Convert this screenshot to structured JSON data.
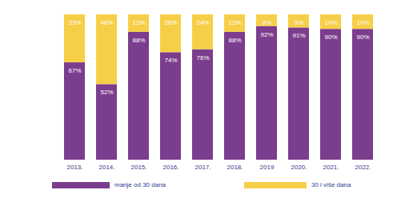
{
  "chart_data": {
    "type": "bar",
    "stacked": true,
    "categories": [
      "2013.",
      "2014.",
      "2015.",
      "2016.",
      "2017.",
      "2018.",
      "2019",
      "2020.",
      "2021.",
      "2022."
    ],
    "series": [
      {
        "name": "manje od 30 dana",
        "color": "#7b3d8d",
        "values": [
          67,
          52,
          88,
          74,
          76,
          88,
          92,
          91,
          90,
          90
        ],
        "value_labels": [
          "67%",
          "52%",
          "88%",
          "74%",
          "76%",
          "88%",
          "92%",
          "91%",
          "90%",
          "90%"
        ]
      },
      {
        "name": "30 i više dana",
        "color": "#f6cf48",
        "values": [
          33,
          48,
          12,
          26,
          24,
          12,
          8,
          9,
          10,
          10
        ],
        "value_labels": [
          "33%",
          "48%",
          "12%",
          "26%",
          "24%",
          "12%",
          "8%",
          "9%",
          "10%",
          "10%"
        ]
      }
    ],
    "ylim": [
      0,
      100
    ],
    "data_labels": true,
    "tick_labels": "x",
    "legend": "bottom"
  }
}
